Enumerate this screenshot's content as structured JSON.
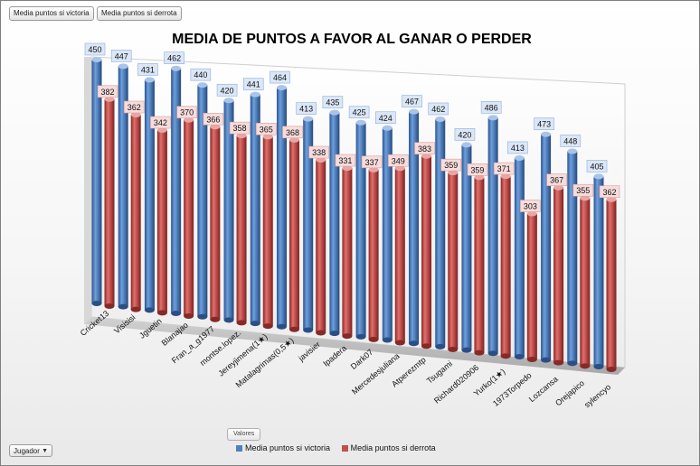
{
  "field_buttons": {
    "victory_label": "Media puntos si victoria",
    "defeat_label": "Media puntos si derrota",
    "values_label": "Valores",
    "player_label": "Jugador"
  },
  "colors": {
    "victory": "#4f81bd",
    "defeat": "#c0504d"
  },
  "chart_data": {
    "type": "bar",
    "title": "MEDIA DE PUNTOS  A FAVOR AL GANAR O PERDER",
    "xlabel": "",
    "ylabel": "",
    "ylim": [
      0,
      500
    ],
    "grid": false,
    "legend_position": "bottom",
    "categories": [
      "Cricket13",
      "Visisisi",
      "Jguetin",
      "Blanajao",
      "Fran_a_g1977",
      "montse.lopez.",
      "Jereyjimena(1★)",
      "Matalagrimas(0,5★)",
      "javisier",
      "Ipadera",
      "Dark07",
      "Mercedesjuliana",
      "Atperezmtp",
      "Tsugami",
      "Richard020906",
      "Yurko(1★)",
      "1973Torpedo",
      "Lozcansa",
      "Orejapico",
      "sylencyo"
    ],
    "series": [
      {
        "name": "Media puntos si victoria",
        "values": [
          450,
          447,
          431,
          462,
          440,
          420,
          441,
          464,
          413,
          435,
          425,
          424,
          467,
          462,
          420,
          486,
          413,
          473,
          448,
          405
        ]
      },
      {
        "name": "Media puntos si derrota",
        "values": [
          382,
          362,
          342,
          370,
          366,
          358,
          365,
          368,
          338,
          331,
          337,
          349,
          383,
          359,
          359,
          371,
          303,
          367,
          355,
          362
        ]
      }
    ]
  }
}
